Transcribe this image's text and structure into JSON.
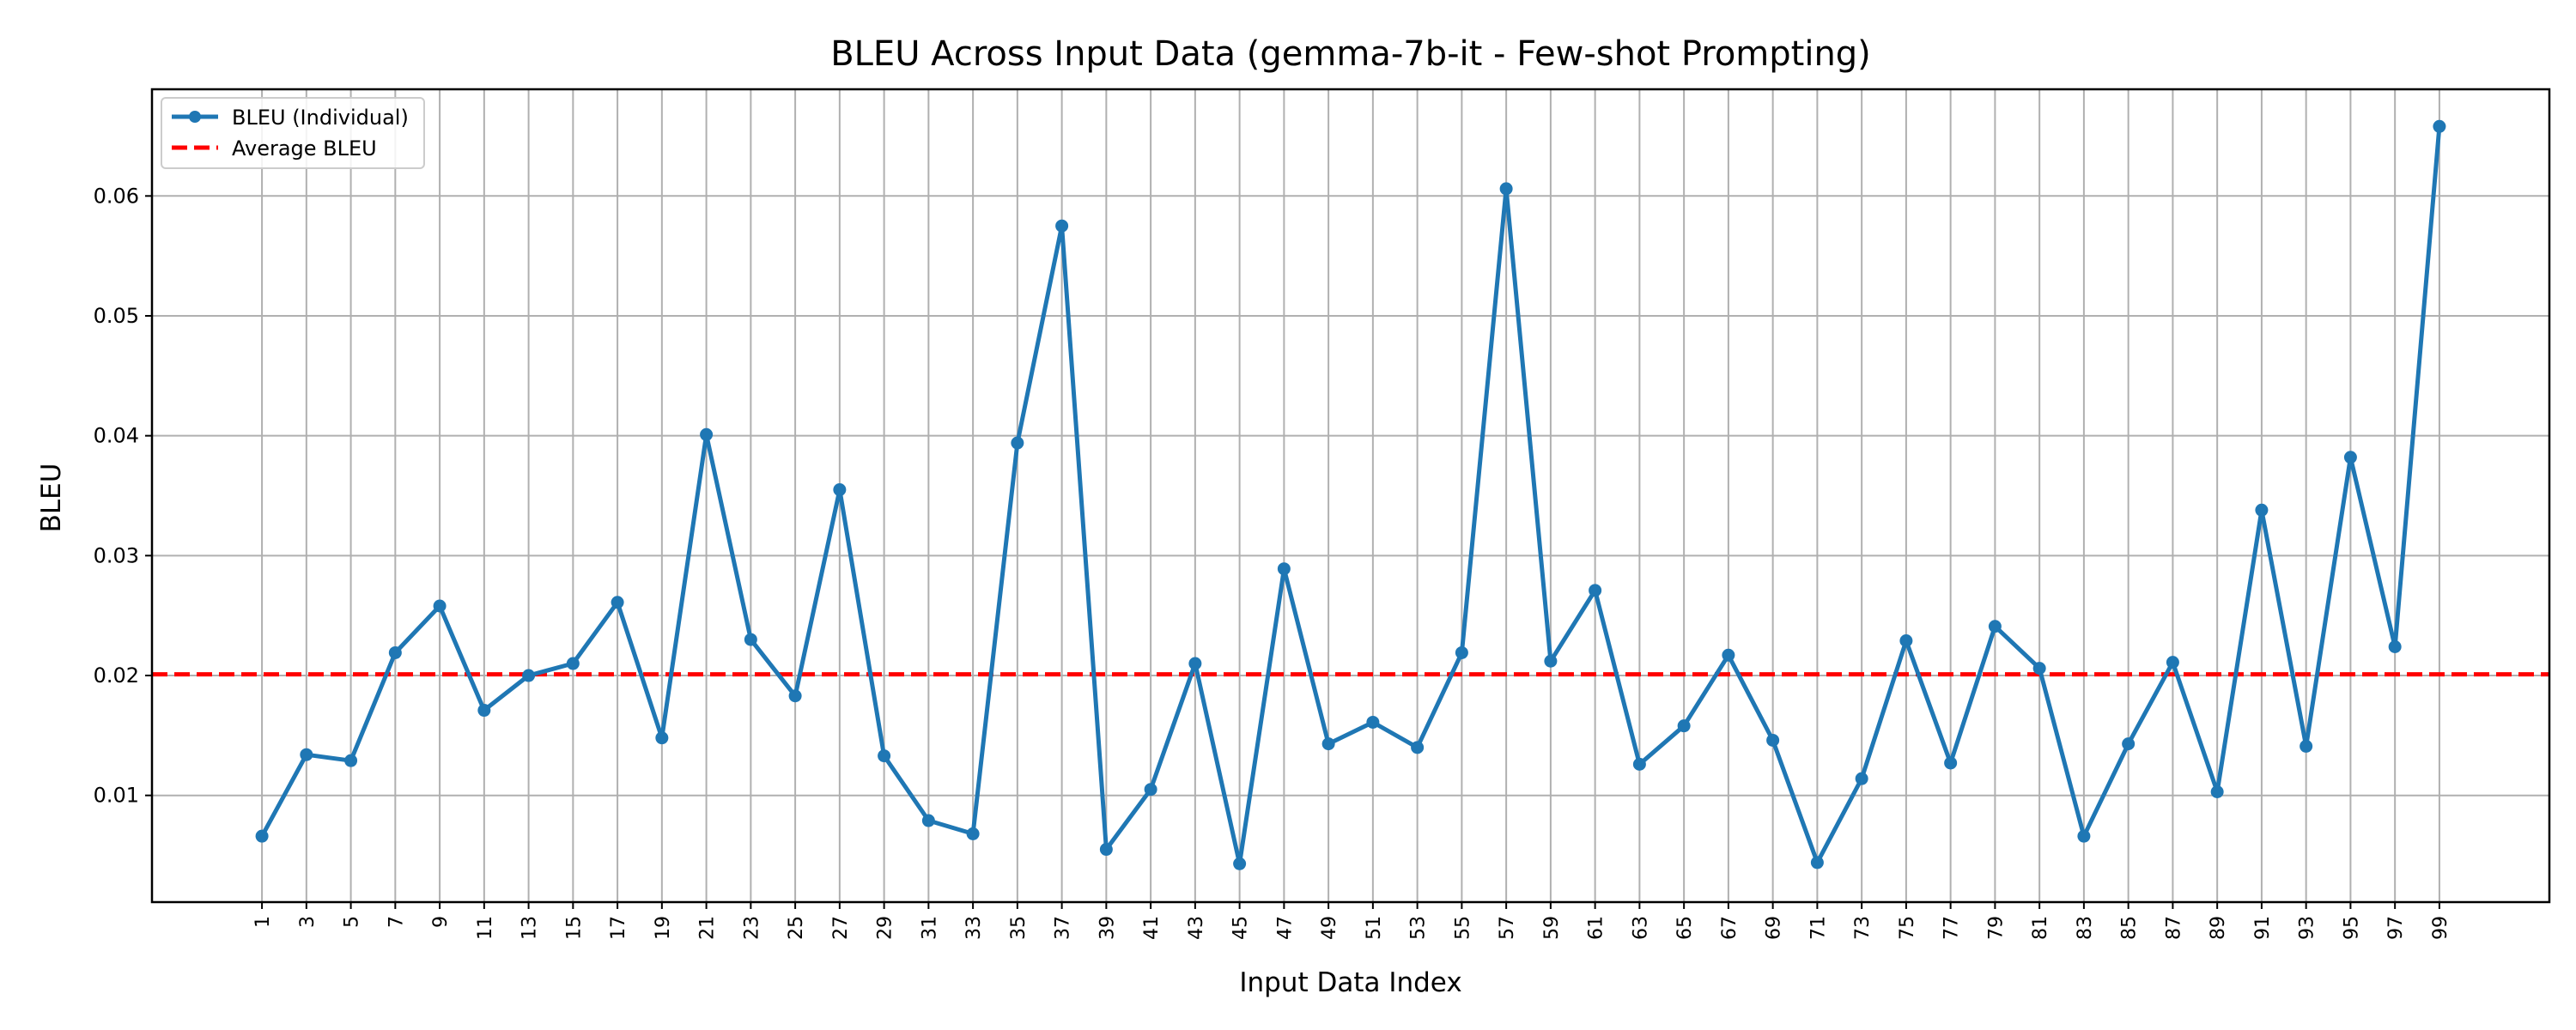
{
  "chart_data": {
    "type": "line",
    "title": "BLEU Across Input Data (gemma-7b-it - Few-shot Prompting)",
    "xlabel": "Input Data Index",
    "ylabel": "BLEU",
    "x": [
      1,
      3,
      5,
      7,
      9,
      11,
      13,
      15,
      17,
      19,
      21,
      23,
      25,
      27,
      29,
      31,
      33,
      35,
      37,
      39,
      41,
      43,
      45,
      47,
      49,
      51,
      53,
      55,
      57,
      59,
      61,
      63,
      65,
      67,
      69,
      71,
      73,
      75,
      77,
      79,
      81,
      83,
      85,
      87,
      89,
      91,
      93,
      95,
      97,
      99
    ],
    "x_tick_labels": [
      "1",
      "3",
      "5",
      "7",
      "9",
      "11",
      "13",
      "15",
      "17",
      "19",
      "21",
      "23",
      "25",
      "27",
      "29",
      "31",
      "33",
      "35",
      "37",
      "39",
      "41",
      "43",
      "45",
      "47",
      "49",
      "51",
      "53",
      "55",
      "57",
      "59",
      "61",
      "63",
      "65",
      "67",
      "69",
      "71",
      "73",
      "75",
      "77",
      "79",
      "81",
      "83",
      "85",
      "87",
      "89",
      "91",
      "93",
      "95",
      "97",
      "99"
    ],
    "series": [
      {
        "name": "BLEU (Individual)",
        "color": "#1f77b4",
        "style": "solid-with-markers",
        "values": [
          0.0066,
          0.0134,
          0.0129,
          0.0219,
          0.0258,
          0.0171,
          0.02,
          0.021,
          0.0261,
          0.0148,
          0.0401,
          0.023,
          0.0183,
          0.0355,
          0.0133,
          0.0079,
          0.0068,
          0.0394,
          0.0575,
          0.0055,
          0.0105,
          0.021,
          0.0043,
          0.0289,
          0.0143,
          0.0161,
          0.014,
          0.0219,
          0.0606,
          0.0212,
          0.0271,
          0.0126,
          0.0158,
          0.0217,
          0.0146,
          0.0044,
          0.0114,
          0.0229,
          0.0127,
          0.0241,
          0.0206,
          0.0066,
          0.0143,
          0.0211,
          0.0103,
          0.0338,
          0.0141,
          0.0382,
          0.0224,
          0.0658
        ]
      },
      {
        "name": "Average BLEU",
        "color": "#ff0000",
        "style": "dashed",
        "value": 0.0201
      }
    ],
    "y_ticks": [
      0.01,
      0.02,
      0.03,
      0.04,
      0.05,
      0.06
    ],
    "y_tick_labels": [
      "0.01",
      "0.02",
      "0.03",
      "0.04",
      "0.05",
      "0.06"
    ],
    "ylim": [
      0.0011,
      0.0689
    ],
    "xlim": [
      -3.95,
      103.95
    ],
    "grid": true,
    "legend_placement": "top-left",
    "grid_color": "#b0b0b0"
  }
}
